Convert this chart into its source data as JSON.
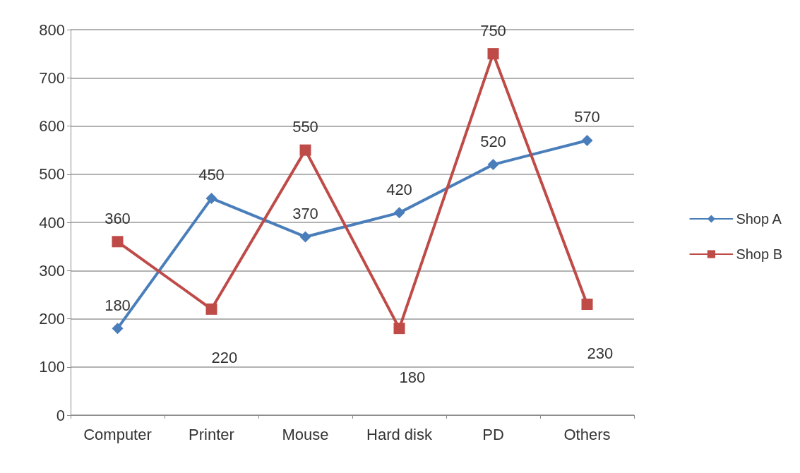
{
  "chart_data": {
    "type": "line",
    "categories": [
      "Computer",
      "Printer",
      "Mouse",
      "Hard disk",
      "PD",
      "Others"
    ],
    "series": [
      {
        "name": "Shop A",
        "color": "#4a7ebb",
        "marker": "diamond",
        "values": [
          180,
          450,
          370,
          420,
          520,
          570
        ]
      },
      {
        "name": "Shop B",
        "color": "#be4b48",
        "marker": "square",
        "values": [
          360,
          220,
          550,
          180,
          750,
          230
        ]
      }
    ],
    "ylim": [
      0,
      800
    ],
    "yticks": [
      0,
      100,
      200,
      300,
      400,
      500,
      600,
      700,
      800
    ],
    "grid": "y",
    "legend": "right",
    "data_labels": true,
    "line_style": "solid"
  }
}
